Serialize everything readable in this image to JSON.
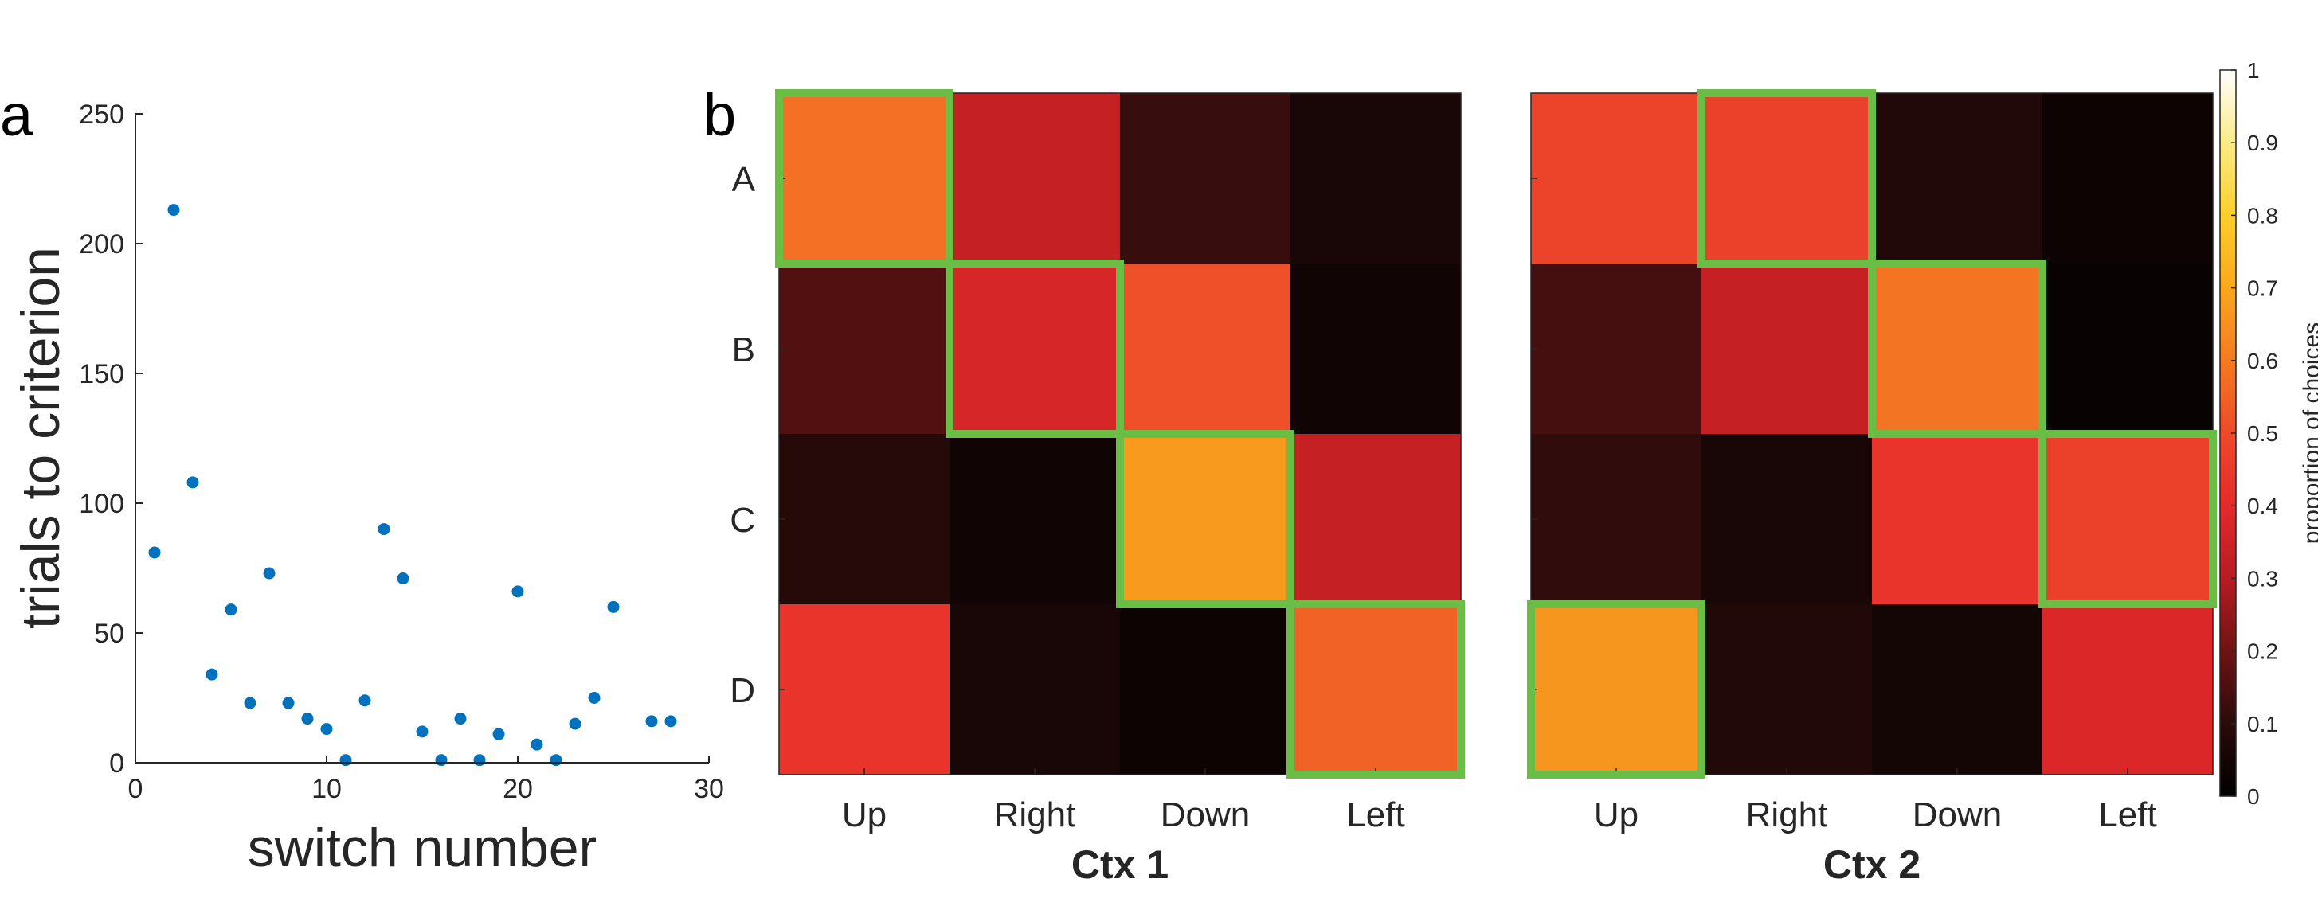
{
  "panels": {
    "a": "a",
    "b": "b"
  },
  "chart_data": [
    {
      "type": "scatter",
      "panel": "a",
      "xlabel": "switch number",
      "ylabel": "trials to criterion",
      "xlim": [
        0,
        30
      ],
      "ylim": [
        0,
        250
      ],
      "xticks": [
        "0",
        "10",
        "20",
        "30"
      ],
      "yticks": [
        "0",
        "50",
        "100",
        "150",
        "200",
        "250"
      ],
      "marker_color": "#0072BD",
      "points": [
        [
          1,
          81
        ],
        [
          2,
          213
        ],
        [
          3,
          108
        ],
        [
          4,
          34
        ],
        [
          5,
          59
        ],
        [
          6,
          23
        ],
        [
          7,
          73
        ],
        [
          8,
          23
        ],
        [
          9,
          17
        ],
        [
          10,
          13
        ],
        [
          11,
          1
        ],
        [
          12,
          24
        ],
        [
          13,
          90
        ],
        [
          14,
          71
        ],
        [
          15,
          12
        ],
        [
          16,
          1
        ],
        [
          17,
          17
        ],
        [
          18,
          1
        ],
        [
          19,
          11
        ],
        [
          20,
          66
        ],
        [
          21,
          7
        ],
        [
          22,
          1
        ],
        [
          23,
          15
        ],
        [
          24,
          25
        ],
        [
          25,
          60
        ],
        [
          27,
          16
        ],
        [
          28,
          16
        ]
      ]
    },
    {
      "type": "heatmap",
      "panel": "b",
      "rows": [
        "A",
        "B",
        "C",
        "D"
      ],
      "columns": [
        "Up",
        "Right",
        "Down",
        "Left"
      ],
      "colormap": "hot",
      "colorbar": {
        "label": "proportion of choices",
        "range": [
          0,
          1
        ],
        "ticks": [
          "0",
          "0.1",
          "0.2",
          "0.3",
          "0.4",
          "0.5",
          "0.6",
          "0.7",
          "0.8",
          "0.9",
          "1"
        ]
      },
      "highlight_color": "#6BBE45",
      "matrices": [
        {
          "title": "Ctx 1",
          "values": [
            [
              0.58,
              0.33,
              0.12,
              0.06
            ],
            [
              0.16,
              0.37,
              0.51,
              0.04
            ],
            [
              0.09,
              0.04,
              0.67,
              0.33
            ],
            [
              0.43,
              0.06,
              0.03,
              0.55
            ]
          ],
          "highlighted": [
            [
              0,
              0
            ],
            [
              1,
              1
            ],
            [
              2,
              2
            ],
            [
              3,
              3
            ]
          ]
        },
        {
          "title": "Ctx 2",
          "values": [
            [
              0.48,
              0.47,
              0.08,
              0.03
            ],
            [
              0.14,
              0.33,
              0.59,
              0.02
            ],
            [
              0.11,
              0.06,
              0.43,
              0.47
            ],
            [
              0.66,
              0.08,
              0.05,
              0.38
            ]
          ],
          "highlighted": [
            [
              0,
              1
            ],
            [
              1,
              2
            ],
            [
              2,
              3
            ],
            [
              3,
              0
            ]
          ]
        }
      ]
    }
  ]
}
